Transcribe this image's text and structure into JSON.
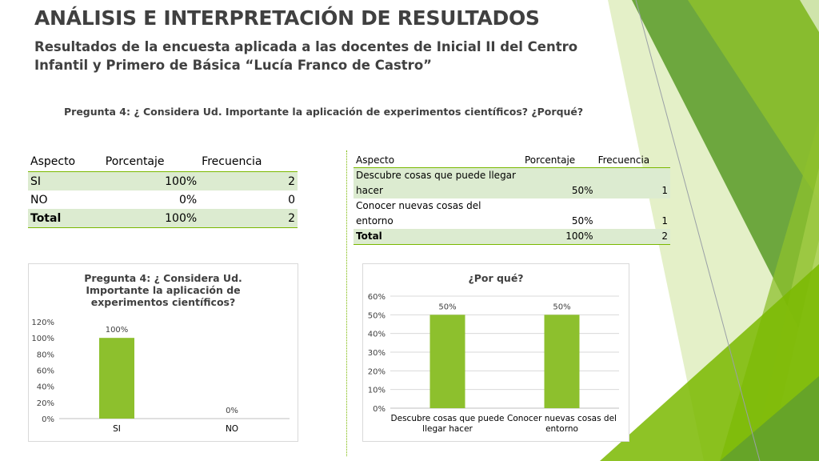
{
  "slide": {
    "title": "ANÁLISIS E INTERPRETACIÓN DE RESULTADOS",
    "subtitle": "Resultados de la encuesta aplicada a las docentes de Inicial II del Centro Infantil y Primero de Básica “Lucía Franco de Castro”",
    "question": "Pregunta 4: ¿ Considera Ud. Importante la aplicación de experimentos científicos?  ¿Porqué?"
  },
  "table1": {
    "headers": [
      "Aspecto",
      "Porcentaje",
      "Frecuencia"
    ],
    "rows": [
      [
        "SI",
        "100%",
        "2"
      ],
      [
        "NO",
        "0%",
        "0"
      ],
      [
        "Total",
        "100%",
        "2"
      ]
    ]
  },
  "table2": {
    "headers": [
      "Aspecto",
      "Porcentaje",
      "Frecuencia"
    ],
    "rows": [
      [
        "Descubre cosas que puede llegar hacer",
        "50%",
        "1"
      ],
      [
        "Conocer nuevas cosas del entorno",
        "50%",
        "1"
      ],
      [
        "Total",
        "100%",
        "2"
      ]
    ]
  },
  "colors": {
    "bar": "#8dc02d",
    "accent": "#7ab800",
    "row_shade": "#dcebd0",
    "text": "#404040"
  },
  "chart_data": [
    {
      "type": "bar",
      "title": "Pregunta 4: ¿ Considera Ud. Importante la aplicación de experimentos científicos?",
      "categories": [
        "SI",
        "NO"
      ],
      "values": [
        100,
        0
      ],
      "data_labels": [
        "100%",
        "0%"
      ],
      "yticks": [
        "0%",
        "20%",
        "40%",
        "60%",
        "80%",
        "100%",
        "120%"
      ],
      "ylim": [
        0,
        120
      ],
      "grid": false
    },
    {
      "type": "bar",
      "title": "¿Por qué?",
      "categories": [
        "Descubre cosas que puede llegar hacer",
        "Conocer nuevas cosas del entorno"
      ],
      "values": [
        50,
        50
      ],
      "data_labels": [
        "50%",
        "50%"
      ],
      "yticks": [
        "0%",
        "10%",
        "20%",
        "30%",
        "40%",
        "50%",
        "60%"
      ],
      "ylim": [
        0,
        60
      ],
      "grid": true
    }
  ]
}
